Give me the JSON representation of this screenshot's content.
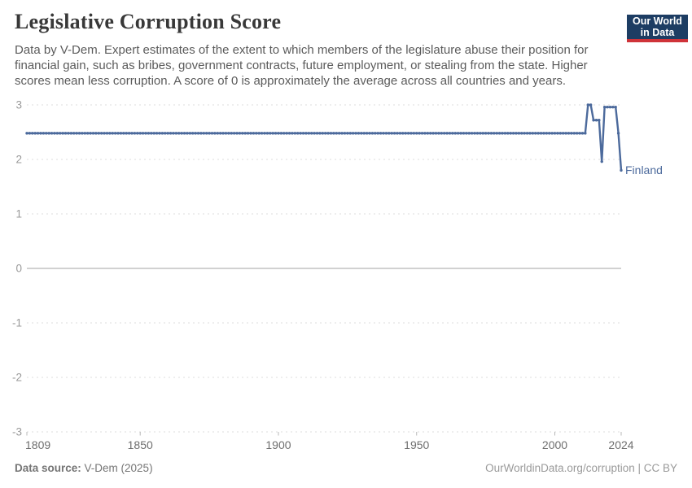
{
  "header": {
    "title": "Legislative Corruption Score",
    "subtitle": "Data by V-Dem. Expert estimates of the extent to which members of the legislature abuse their position for\nfinancial gain, such as bribes, government contracts, future employment, or stealing from the state. Higher\nscores mean less corruption. A score of 0 is approximately the average across all countries and years.",
    "logo": {
      "line1": "Our World",
      "line2": "in Data",
      "bg_color": "#1d3d63",
      "bar_color": "#cf3339"
    }
  },
  "chart_data": {
    "type": "line",
    "title": "Legislative Corruption Score",
    "entity_label": "Finland",
    "series": [
      {
        "name": "Finland",
        "color": "#4c6a9c",
        "segments": [
          {
            "from_year": 1809,
            "to_year": 2011,
            "value": 2.48
          },
          {
            "from_year": 2012,
            "to_year": 2013,
            "value": 3.0
          },
          {
            "from_year": 2014,
            "to_year": 2016,
            "value": 2.72
          },
          {
            "from_year": 2017,
            "to_year": 2017,
            "value": 1.96
          },
          {
            "from_year": 2018,
            "to_year": 2022,
            "value": 2.96
          },
          {
            "from_year": 2023,
            "to_year": 2023,
            "value": 2.48
          },
          {
            "from_year": 2024,
            "to_year": 2024,
            "value": 1.8
          }
        ]
      }
    ],
    "xlabel": "",
    "ylabel": "",
    "x_axis": {
      "min": 1809,
      "max": 2024,
      "tick_labels": [
        "1809",
        "1850",
        "1900",
        "1950",
        "2000",
        "2024"
      ],
      "tick_years": [
        1809,
        1850,
        1900,
        1950,
        2000,
        2024
      ]
    },
    "y_axis": {
      "min": -3,
      "max": 3,
      "ticks": [
        3,
        2,
        1,
        0,
        -1,
        -2,
        -3
      ]
    },
    "grid": {
      "horizontal": true,
      "style": "dashed",
      "zero_line": "solid"
    },
    "legend_position": "end-of-line-label",
    "colors": {
      "gridline": "#dcdcdc",
      "zero_line": "#a3a3a3",
      "y_tick_label": "#9a9a9a",
      "x_tick_label": "#6e6e6e",
      "tick_mark": "#b8b8b8"
    }
  },
  "footer": {
    "source_label": "Data source:",
    "source_value": " V-Dem (2025)",
    "license_link": "OurWorldinData.org/corruption | CC BY"
  }
}
